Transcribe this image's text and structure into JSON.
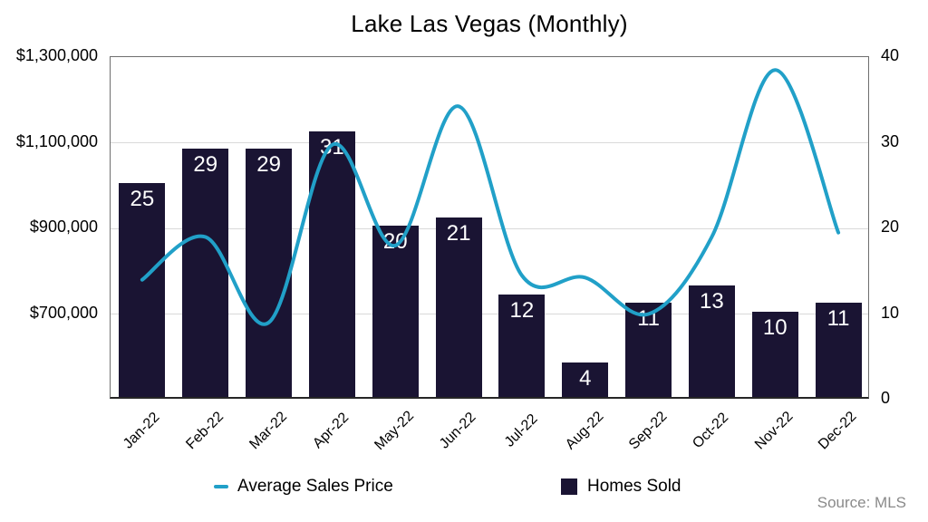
{
  "title": "Lake Las Vegas (Monthly)",
  "source_note": "Source: MLS",
  "colors": {
    "bar": "#1a1433",
    "line": "#21a0c8",
    "gridline": "#d9d9d9",
    "bar_label": "#ffffff",
    "source_text": "#8a8a8a"
  },
  "legend": {
    "position": "bottom",
    "items": [
      {
        "label": "Average Sales Price",
        "marker": "line-dash",
        "color": "#21a0c8"
      },
      {
        "label": "Homes Sold",
        "marker": "square",
        "color": "#1a1433"
      }
    ]
  },
  "chart_data": {
    "type": "combo",
    "title": "Lake Las Vegas (Monthly)",
    "categories": [
      "Jan-22",
      "Feb-22",
      "Mar-22",
      "Apr-22",
      "May-22",
      "Jun-22",
      "Jul-22",
      "Aug-22",
      "Sep-22",
      "Oct-22",
      "Nov-22",
      "Dec-22"
    ],
    "series": [
      {
        "name": "Homes Sold",
        "type": "bar",
        "y_axis": "right",
        "color": "#1a1433",
        "data_labels": true,
        "values": [
          25,
          29,
          29,
          31,
          20,
          21,
          12,
          4,
          11,
          13,
          10,
          11
        ]
      },
      {
        "name": "Average Sales Price",
        "type": "line",
        "y_axis": "left",
        "color": "#21a0c8",
        "smooth": true,
        "values": [
          780000,
          880000,
          680000,
          1095000,
          860000,
          1185000,
          790000,
          785000,
          700000,
          880000,
          1270000,
          890000
        ]
      }
    ],
    "left_axis": {
      "min": 500000,
      "max": 1300000,
      "tick_labels": [
        "$1,300,000",
        "$1,100,000",
        "$900,000",
        "$700,000"
      ],
      "tick_values": [
        1300000,
        1100000,
        900000,
        700000
      ]
    },
    "right_axis": {
      "min": 0,
      "max": 40,
      "tick_labels": [
        "40",
        "30",
        "20",
        "10",
        "0"
      ],
      "tick_values": [
        40,
        30,
        20,
        10,
        0
      ]
    },
    "grid": true,
    "legend_position": "bottom",
    "x_tick_rotation": -45
  }
}
